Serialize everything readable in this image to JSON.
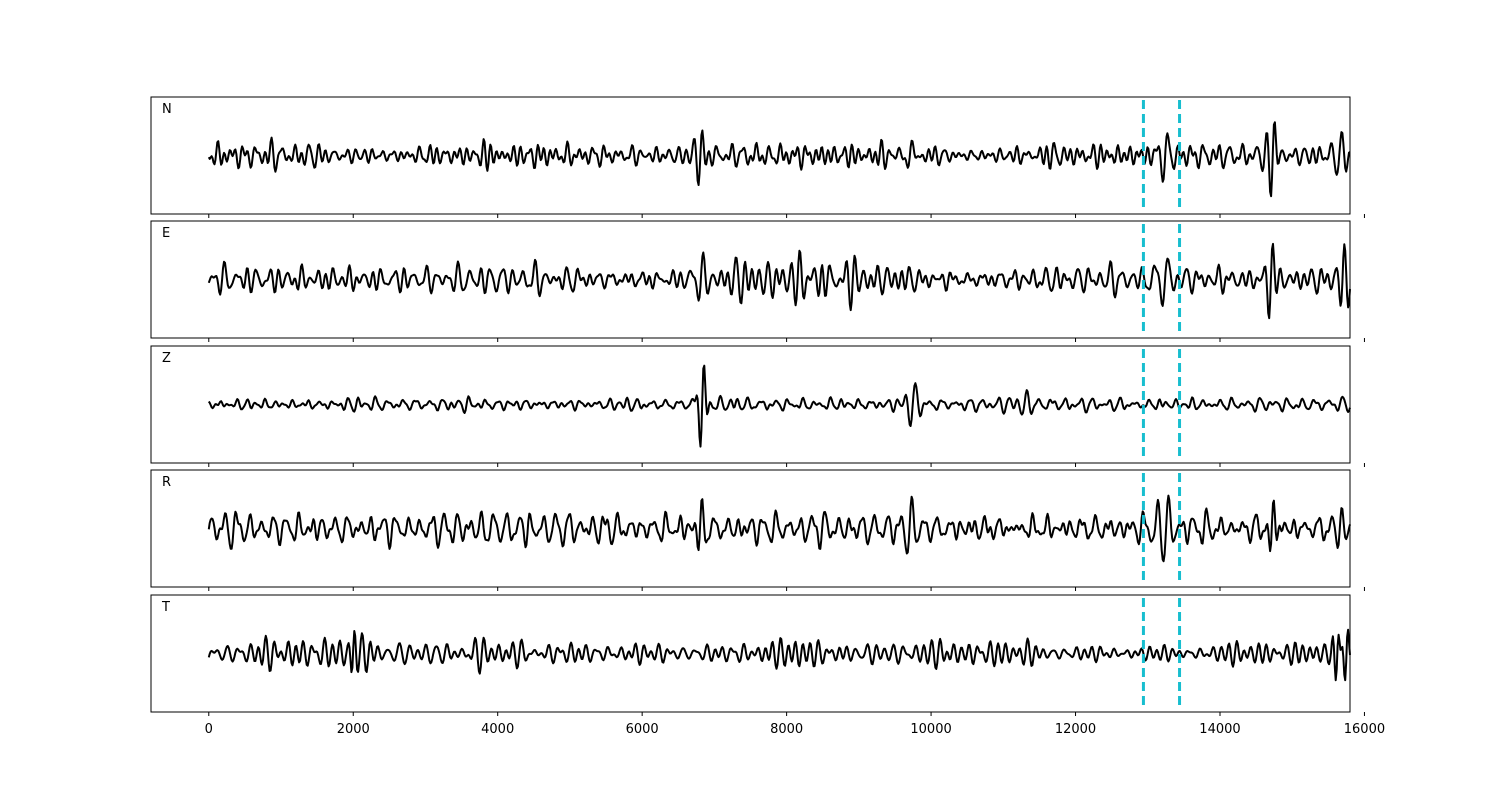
{
  "chart_data": {
    "type": "line",
    "xlim": [
      -800,
      15800
    ],
    "x_ticks": [
      0,
      2000,
      4000,
      6000,
      8000,
      10000,
      12000,
      14000,
      16000
    ],
    "x_tick_labels": [
      "0",
      "2000",
      "4000",
      "6000",
      "8000",
      "10000",
      "12000",
      "14000",
      "16000"
    ],
    "n_samples": 15800,
    "pick_lines": [
      12940,
      13440
    ],
    "pick_color": "#17becf",
    "trace_color": "#000000",
    "panels": [
      {
        "label": "N",
        "seed": 11,
        "base_amp": 0.28,
        "events": [
          {
            "t": 6800,
            "amp": 0.45,
            "width": 40,
            "period": 110
          },
          {
            "t": 9700,
            "amp": 0.35,
            "width": 60,
            "period": 170
          },
          {
            "t": 13250,
            "amp": 0.5,
            "width": 55,
            "period": 150
          },
          {
            "t": 14730,
            "amp": 0.85,
            "width": 30,
            "period": 120
          },
          {
            "t": 15650,
            "amp": 0.4,
            "width": 50,
            "period": 140
          }
        ]
      },
      {
        "label": "E",
        "seed": 23,
        "base_amp": 0.33,
        "events": [
          {
            "t": 6800,
            "amp": 0.4,
            "width": 45,
            "period": 120
          },
          {
            "t": 8550,
            "amp": 0.45,
            "width": 40,
            "period": 110
          },
          {
            "t": 13250,
            "amp": 0.55,
            "width": 55,
            "period": 150
          },
          {
            "t": 14700,
            "amp": 0.7,
            "width": 30,
            "period": 120
          },
          {
            "t": 15700,
            "amp": 0.55,
            "width": 40,
            "period": 110
          }
        ]
      },
      {
        "label": "Z",
        "seed": 37,
        "base_amp": 0.14,
        "events": [
          {
            "t": 6830,
            "amp": 0.9,
            "width": 30,
            "period": 110
          },
          {
            "t": 9750,
            "amp": 0.4,
            "width": 50,
            "period": 150
          },
          {
            "t": 11300,
            "amp": 0.25,
            "width": 50,
            "period": 140
          }
        ]
      },
      {
        "label": "R",
        "seed": 41,
        "base_amp": 0.26,
        "events": [
          {
            "t": 6800,
            "amp": 0.45,
            "width": 40,
            "period": 110
          },
          {
            "t": 9700,
            "amp": 0.4,
            "width": 55,
            "period": 170
          },
          {
            "t": 13250,
            "amp": 0.6,
            "width": 55,
            "period": 150
          },
          {
            "t": 14720,
            "amp": 0.8,
            "width": 30,
            "period": 120
          },
          {
            "t": 15650,
            "amp": 0.35,
            "width": 50,
            "period": 140
          }
        ]
      },
      {
        "label": "T",
        "seed": 53,
        "base_amp": 0.38,
        "events": [
          {
            "t": 2000,
            "amp": 0.45,
            "width": 25,
            "period": 90
          },
          {
            "t": 15620,
            "amp": 0.55,
            "width": 25,
            "period": 90
          },
          {
            "t": 15750,
            "amp": 0.55,
            "width": 25,
            "period": 90
          }
        ]
      }
    ]
  }
}
